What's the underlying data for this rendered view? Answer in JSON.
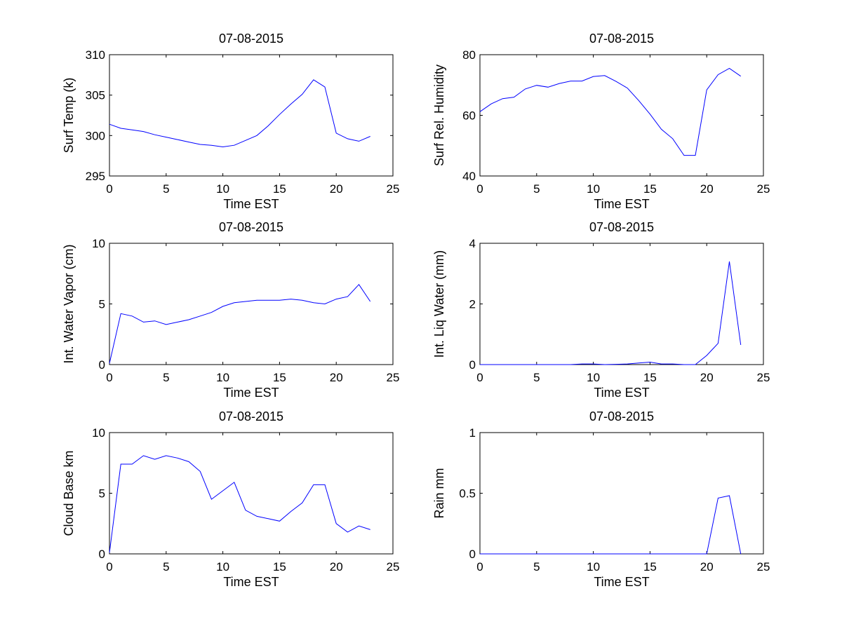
{
  "chart_data": [
    {
      "type": "line",
      "title": "07-08-2015",
      "xlabel": "Time EST",
      "ylabel": "Surf Temp (k)",
      "xlim": [
        0,
        25
      ],
      "ylim": [
        295,
        310
      ],
      "xticks": [
        0,
        5,
        10,
        15,
        20,
        25
      ],
      "yticks": [
        295,
        300,
        305,
        310
      ],
      "series": [
        {
          "name": "Surf Temp",
          "color": "#0000ff",
          "x": [
            0,
            1,
            2,
            3,
            4,
            5,
            6,
            7,
            8,
            9,
            10,
            11,
            12,
            13,
            14,
            15,
            16,
            17,
            18,
            19,
            20,
            21,
            22,
            23
          ],
          "y": [
            301.4,
            300.9,
            300.7,
            300.5,
            300.1,
            299.8,
            299.5,
            299.2,
            298.9,
            298.8,
            298.6,
            298.8,
            299.4,
            300.0,
            301.2,
            302.6,
            303.9,
            305.1,
            306.9,
            306.0,
            300.3,
            299.6,
            299.3,
            299.9
          ]
        }
      ]
    },
    {
      "type": "line",
      "title": "07-08-2015",
      "xlabel": "Time EST",
      "ylabel": "Surf Rel. Humidity",
      "xlim": [
        0,
        25
      ],
      "ylim": [
        40,
        80
      ],
      "xticks": [
        0,
        5,
        10,
        15,
        20,
        25
      ],
      "yticks": [
        40,
        60,
        80
      ],
      "series": [
        {
          "name": "Surf Rel. Humidity",
          "color": "#0000ff",
          "x": [
            0,
            1,
            2,
            3,
            4,
            5,
            6,
            7,
            8,
            9,
            10,
            11,
            12,
            13,
            14,
            15,
            16,
            17,
            18,
            19,
            20,
            21,
            22,
            23
          ],
          "y": [
            61.2,
            63.8,
            65.5,
            66.0,
            68.7,
            69.9,
            69.3,
            70.5,
            71.3,
            71.3,
            72.8,
            73.1,
            71.2,
            69.0,
            64.9,
            60.4,
            55.4,
            52.3,
            46.8,
            46.8,
            68.4,
            73.4,
            75.5,
            72.9
          ]
        }
      ]
    },
    {
      "type": "line",
      "title": "07-08-2015",
      "xlabel": "Time EST",
      "ylabel": "Int. Water Vapor (cm)",
      "xlim": [
        0,
        25
      ],
      "ylim": [
        0,
        10
      ],
      "xticks": [
        0,
        5,
        10,
        15,
        20,
        25
      ],
      "yticks": [
        0,
        5,
        10
      ],
      "series": [
        {
          "name": "Int. Water Vapor",
          "color": "#0000ff",
          "x": [
            0,
            1,
            2,
            3,
            4,
            5,
            6,
            7,
            8,
            9,
            10,
            11,
            12,
            13,
            14,
            15,
            16,
            17,
            18,
            19,
            20,
            21,
            22,
            23
          ],
          "y": [
            0.1,
            4.2,
            4.0,
            3.5,
            3.6,
            3.3,
            3.5,
            3.7,
            4.0,
            4.3,
            4.8,
            5.1,
            5.2,
            5.3,
            5.3,
            5.3,
            5.4,
            5.3,
            5.1,
            5.0,
            5.4,
            5.6,
            6.6,
            5.2
          ]
        }
      ]
    },
    {
      "type": "line",
      "title": "07-08-2015",
      "xlabel": "Time EST",
      "ylabel": "Int. Liq Water (mm)",
      "xlim": [
        0,
        25
      ],
      "ylim": [
        0,
        4
      ],
      "xticks": [
        0,
        5,
        10,
        15,
        20,
        25
      ],
      "yticks": [
        0,
        2,
        4
      ],
      "series": [
        {
          "name": "Int. Liq Water",
          "color": "#0000ff",
          "x": [
            0,
            1,
            2,
            3,
            4,
            5,
            6,
            7,
            8,
            9,
            10,
            11,
            12,
            13,
            14,
            15,
            16,
            17,
            18,
            19,
            20,
            21,
            22,
            23
          ],
          "y": [
            0,
            0,
            0,
            0,
            0,
            0,
            0,
            0,
            0,
            0.02,
            0.02,
            0,
            0.01,
            0.02,
            0.05,
            0.08,
            0.02,
            0.02,
            0,
            0,
            0.3,
            0.7,
            3.4,
            0.65
          ]
        }
      ]
    },
    {
      "type": "line",
      "title": "07-08-2015",
      "xlabel": "Time EST",
      "ylabel": "Cloud Base km",
      "xlim": [
        0,
        25
      ],
      "ylim": [
        0,
        10
      ],
      "xticks": [
        0,
        5,
        10,
        15,
        20,
        25
      ],
      "yticks": [
        0,
        5,
        10
      ],
      "series": [
        {
          "name": "Cloud Base",
          "color": "#0000ff",
          "x": [
            0,
            1,
            2,
            3,
            4,
            5,
            6,
            7,
            8,
            9,
            10,
            11,
            12,
            13,
            14,
            15,
            16,
            17,
            18,
            19,
            20,
            21,
            22,
            23
          ],
          "y": [
            0.1,
            7.4,
            7.4,
            8.1,
            7.8,
            8.1,
            7.9,
            7.6,
            6.8,
            4.5,
            5.2,
            5.9,
            3.6,
            3.1,
            2.9,
            2.7,
            3.5,
            4.2,
            5.7,
            5.7,
            2.5,
            1.8,
            2.3,
            2.0
          ]
        }
      ]
    },
    {
      "type": "line",
      "title": "07-08-2015",
      "xlabel": "Time EST",
      "ylabel": "Rain mm",
      "xlim": [
        0,
        25
      ],
      "ylim": [
        0,
        1
      ],
      "xticks": [
        0,
        5,
        10,
        15,
        20,
        25
      ],
      "yticks": [
        0,
        0.5,
        1
      ],
      "series": [
        {
          "name": "Rain",
          "color": "#0000ff",
          "x": [
            0,
            1,
            2,
            3,
            4,
            5,
            6,
            7,
            8,
            9,
            10,
            11,
            12,
            13,
            14,
            15,
            16,
            17,
            18,
            19,
            20,
            21,
            22,
            23
          ],
          "y": [
            0,
            0,
            0,
            0,
            0,
            0,
            0,
            0,
            0,
            0,
            0,
            0,
            0,
            0,
            0,
            0,
            0,
            0,
            0,
            0,
            0,
            0.46,
            0.48,
            0
          ]
        }
      ]
    }
  ]
}
